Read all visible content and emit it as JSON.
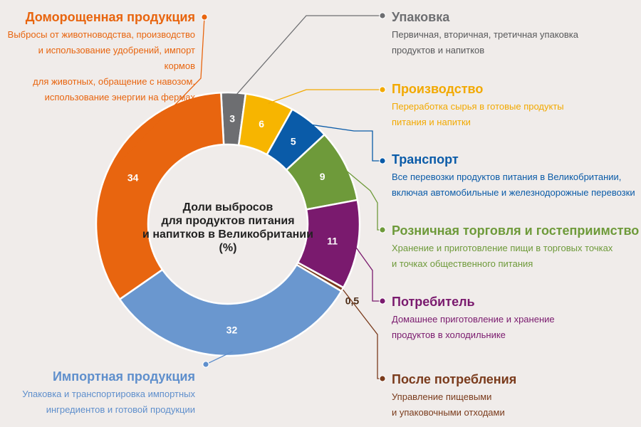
{
  "chart_data": {
    "type": "donut",
    "title_lines": [
      "Доли выбросов",
      "для продуктов питания",
      "и напитков в Великобритании",
      "(%)"
    ],
    "segments": [
      {
        "value": 3,
        "value_label": "3",
        "color": "#6d6e71"
      },
      {
        "value": 6,
        "value_label": "6",
        "color": "#f7b500"
      },
      {
        "value": 5,
        "value_label": "5",
        "color": "#0a5ba8"
      },
      {
        "value": 9,
        "value_label": "9",
        "color": "#6e9a3a"
      },
      {
        "value": 11,
        "value_label": "11",
        "color": "#7a1a6e"
      },
      {
        "value": 0.5,
        "value_label": "0,5",
        "color": "#7a3b1c"
      },
      {
        "value": 32,
        "value_label": "32",
        "color": "#6a97cf"
      },
      {
        "value": 34,
        "value_label": "34",
        "color": "#e8650f"
      }
    ]
  },
  "labels": {
    "packaging": {
      "title": "Упаковка",
      "lines": [
        "Первичная, вторичная, третичная упаковка",
        "продуктов и напитков"
      ],
      "color": "#6d6e71"
    },
    "production": {
      "title": "Производство",
      "lines": [
        "Переработка сырья в готовые продукты",
        "питания и напитки"
      ],
      "color": "#f2a900"
    },
    "transport": {
      "title": "Транспорт",
      "lines": [
        "Все перевозки продуктов питания в Великобритании,",
        "включая автомобильные и железнодорожные перевозки"
      ],
      "color": "#0a5ba8"
    },
    "retail": {
      "title": "Розничная торговля и гостеприимство",
      "lines": [
        "Хранение и приготовление пищи в торговых точках",
        "и точках общественного питания"
      ],
      "color": "#6e9a3a"
    },
    "consumer": {
      "title": "Потребитель",
      "lines": [
        "Домашнее приготовление и хранение",
        "продуктов в холодильнике"
      ],
      "color": "#7a1a6e"
    },
    "post": {
      "title": "После потребления",
      "lines": [
        "Управление пищевыми",
        "и упаковочными отходами"
      ],
      "color": "#7a3b1c"
    },
    "imported": {
      "title": "Импортная продукция",
      "lines": [
        "Упаковка и транспортировка импортных",
        "ингредиентов и готовой продукции"
      ],
      "color": "#5f8fcc"
    },
    "domestic": {
      "title": "Доморощенная продукция",
      "lines": [
        "Выбросы от животноводства, производство",
        "и использование удобрений, импорт кормов",
        "для животных, обращение с навозом,",
        "использование энергии на фермах"
      ],
      "color": "#e8650f"
    }
  }
}
